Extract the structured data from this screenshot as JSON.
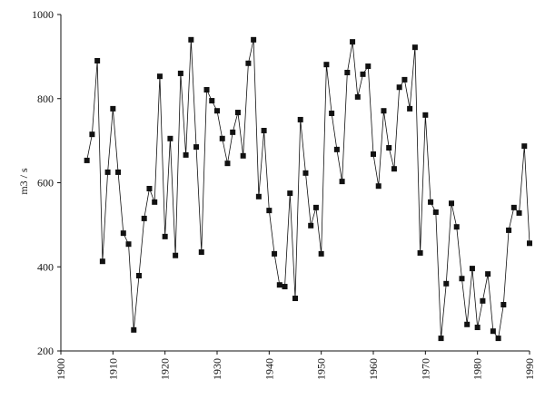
{
  "chart_data": {
    "type": "line",
    "y_label": "m3 / s",
    "x": [
      1905,
      1906,
      1907,
      1908,
      1909,
      1910,
      1911,
      1912,
      1913,
      1914,
      1915,
      1916,
      1917,
      1918,
      1919,
      1920,
      1921,
      1922,
      1923,
      1924,
      1925,
      1926,
      1927,
      1928,
      1929,
      1930,
      1931,
      1932,
      1933,
      1934,
      1935,
      1936,
      1937,
      1938,
      1939,
      1940,
      1941,
      1942,
      1943,
      1944,
      1945,
      1946,
      1947,
      1948,
      1949,
      1950,
      1951,
      1952,
      1953,
      1954,
      1955,
      1956,
      1957,
      1958,
      1959,
      1960,
      1961,
      1962,
      1963,
      1964,
      1965,
      1966,
      1967,
      1968,
      1969,
      1970,
      1971,
      1972,
      1973,
      1974,
      1975,
      1976,
      1977,
      1978,
      1979,
      1980,
      1981,
      1982,
      1983,
      1984,
      1985,
      1986,
      1987,
      1988,
      1989,
      1990
    ],
    "series": [
      {
        "color": "#111111",
        "values": [
          653,
          715,
          890,
          413,
          625,
          776,
          625,
          480,
          454,
          250,
          379,
          515,
          586,
          554,
          853,
          472,
          705,
          427,
          860,
          666,
          940,
          685,
          435,
          821,
          795,
          771,
          705,
          646,
          720,
          767,
          664,
          884,
          940,
          567,
          724,
          534,
          431,
          357,
          353,
          575,
          325,
          750,
          623,
          498,
          541,
          431,
          881,
          765,
          679,
          603,
          862,
          935,
          804,
          858,
          877,
          668,
          592,
          771,
          683,
          633,
          827,
          845,
          776,
          922,
          433,
          761,
          554,
          530,
          230,
          360,
          551,
          495,
          372,
          263,
          396,
          256,
          319,
          383,
          247,
          230,
          310,
          487,
          541,
          528,
          687,
          456
        ]
      }
    ],
    "xlim": [
      1900,
      1990
    ],
    "xticks": [
      1900,
      1910,
      1920,
      1930,
      1940,
      1950,
      1960,
      1970,
      1980,
      1990
    ],
    "ylim": [
      200,
      1000
    ],
    "yticks": [
      200,
      400,
      600,
      800,
      1000
    ],
    "grid": false
  }
}
